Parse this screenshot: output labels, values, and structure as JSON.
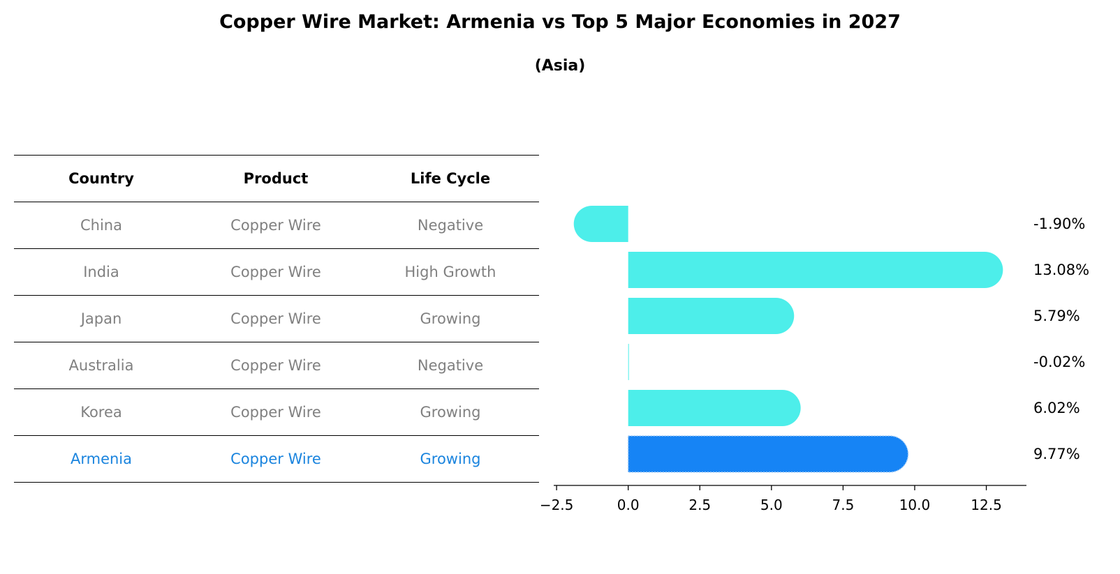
{
  "title": "Copper Wire Market: Armenia vs Top 5 Major Economies in 2027",
  "subtitle": "(Asia)",
  "table": {
    "headers": [
      "Country",
      "Product",
      "Life Cycle"
    ],
    "rows": [
      {
        "country": "China",
        "product": "Copper Wire",
        "life_cycle": "Negative"
      },
      {
        "country": "India",
        "product": "Copper Wire",
        "life_cycle": "High Growth"
      },
      {
        "country": "Japan",
        "product": "Copper Wire",
        "life_cycle": "Growing"
      },
      {
        "country": "Australia",
        "product": "Copper Wire",
        "life_cycle": "Negative"
      },
      {
        "country": "Korea",
        "product": "Copper Wire",
        "life_cycle": "Growing"
      },
      {
        "country": "Armenia",
        "product": "Copper Wire",
        "life_cycle": "Growing"
      }
    ]
  },
  "chart_data": {
    "type": "bar",
    "orientation": "horizontal",
    "categories": [
      "China",
      "India",
      "Japan",
      "Australia",
      "Korea",
      "Armenia"
    ],
    "values": [
      -1.9,
      13.08,
      5.79,
      -0.02,
      6.02,
      9.77
    ],
    "value_labels": [
      "-1.90%",
      "13.08%",
      "5.79%",
      "-0.02%",
      "6.02%",
      "9.77%"
    ],
    "highlight": "Armenia",
    "xlim": [
      -2.6,
      13.9
    ],
    "xticks": [
      -2.5,
      0.0,
      2.5,
      5.0,
      7.5,
      10.0,
      12.5
    ],
    "xtick_labels": [
      "−2.5",
      "0.0",
      "2.5",
      "5.0",
      "7.5",
      "10.0",
      "12.5"
    ],
    "colors": {
      "default": "#4deeea",
      "highlight": "#1684f5"
    }
  }
}
